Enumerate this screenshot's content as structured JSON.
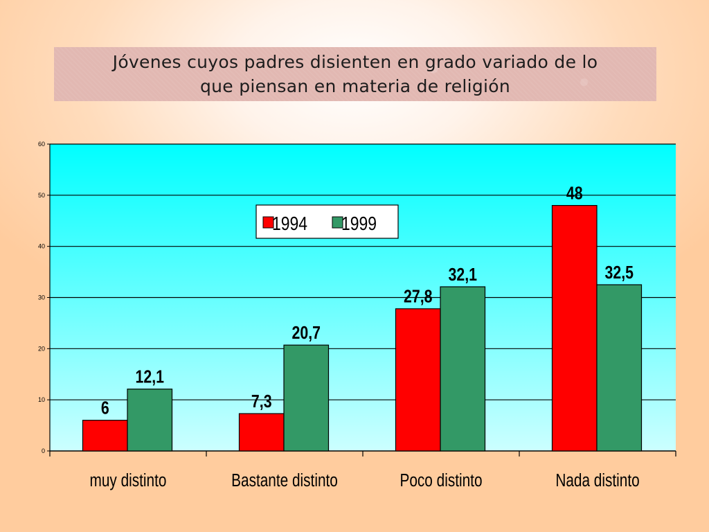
{
  "slide": {
    "title": "Jóvenes cuyos padres disienten en grado variado de lo\nque piensan en materia de religión"
  },
  "colors": {
    "series_1994": "#ff0000",
    "series_1999": "#339966",
    "plot_top": "#00ffff",
    "plot_bottom": "#ccffff"
  },
  "chart_data": {
    "type": "bar",
    "categories": [
      "muy distinto",
      "Bastante distinto",
      "Poco distinto",
      "Nada distinto"
    ],
    "series": [
      {
        "name": "1994",
        "values": [
          6,
          7.3,
          27.8,
          48
        ],
        "labels": [
          "6",
          "7,3",
          "27,8",
          "48"
        ]
      },
      {
        "name": "1999",
        "values": [
          12.1,
          20.7,
          32.1,
          32.5
        ],
        "labels": [
          "12,1",
          "20,7",
          "32,1",
          "32,5"
        ]
      }
    ],
    "y_ticks": [
      0,
      10,
      20,
      30,
      40,
      50,
      60
    ],
    "ylim": [
      0,
      60
    ],
    "grid": true,
    "legend": "top-center",
    "data_labels": true
  }
}
